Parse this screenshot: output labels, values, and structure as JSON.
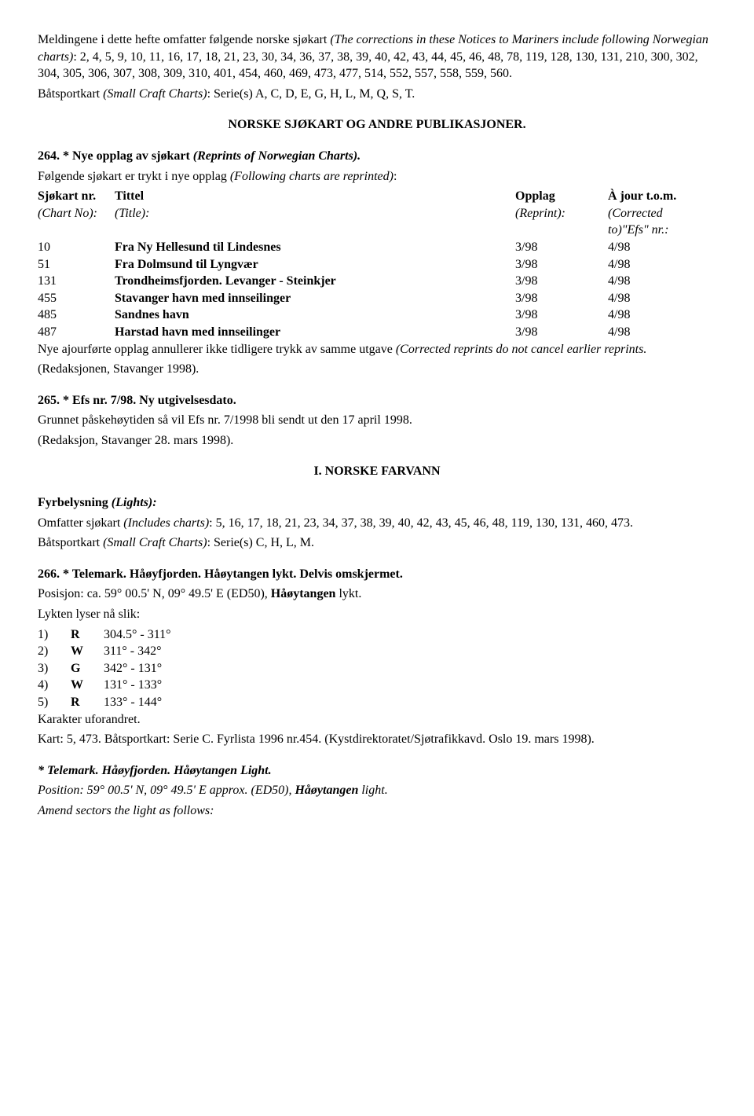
{
  "intro": {
    "lead_before_italic": "Meldingene i dette hefte omfatter følgende norske sjøkart ",
    "lead_italic": "(The corrections in these Notices to Mariners include following Norwegian charts)",
    "lead_after": ": 2, 4, 5, 9, 10, 11, 16, 17, 18, 21, 23, 30, 34, 36, 37, 38, 39, 40, 42, 43, 44, 45, 46, 48, 78, 119, 128, 130, 131, 210, 300, 302, 304, 305, 306, 307, 308, 309, 310, 401, 454, 460, 469, 473, 477, 514, 552, 557, 558, 559, 560.",
    "small_before_italic": "Båtsportkart ",
    "small_italic": "(Small Craft Charts)",
    "small_after": ": Serie(s) A, C, D, E, G, H, L, M, Q, S, T."
  },
  "heading1": "NORSKE SJØKART OG ANDRE PUBLIKASJONER.",
  "s264": {
    "title_bold": "264. * Nye opplag av sjøkart ",
    "title_italic": "(Reprints of Norwegian Charts).",
    "sub_before_italic": "Følgende sjøkart er trykt i nye opplag ",
    "sub_italic": "(Following charts are reprinted)",
    "sub_after": ":",
    "headers": {
      "no_bold": "Sjøkart nr.",
      "no_italic": "(Chart No):",
      "title_bold": "Tittel",
      "title_italic": "(Title):",
      "opplag_bold": "Opplag",
      "opplag_italic": "(Reprint):",
      "ajour_bold": "À jour t.o.m.",
      "ajour_italic1": "(Corrected",
      "ajour_italic2": "to)\"Efs\" nr.:"
    },
    "rows": [
      {
        "no": "10",
        "title": "Fra Ny Hellesund til Lindesnes",
        "opplag": "3/98",
        "ajour": "4/98"
      },
      {
        "no": "51",
        "title": "Fra Dolmsund til Lyngvær",
        "opplag": "3/98",
        "ajour": "4/98"
      },
      {
        "no": "131",
        "title": "Trondheimsfjorden. Levanger - Steinkjer",
        "opplag": "3/98",
        "ajour": "4/98"
      },
      {
        "no": "455",
        "title": "Stavanger havn med innseilinger",
        "opplag": "3/98",
        "ajour": "4/98"
      },
      {
        "no": "485",
        "title": "Sandnes havn",
        "opplag": "3/98",
        "ajour": "4/98"
      },
      {
        "no": "487",
        "title": "Harstad havn med innseilinger",
        "opplag": "3/98",
        "ajour": "4/98"
      }
    ],
    "tail_before_italic": "Nye ajourførte opplag annullerer ikke tidligere trykk av samme utgave ",
    "tail_italic": "(Corrected reprints do not cancel earlier reprints.",
    "source": "(Redaksjonen, Stavanger 1998)."
  },
  "s265": {
    "title": "265. * Efs nr. 7/98. Ny utgivelsesdato.",
    "body": "Grunnet påskehøytiden så vil Efs nr. 7/1998 bli sendt ut den 17 april 1998.",
    "source": "(Redaksjon, Stavanger 28. mars 1998)."
  },
  "heading2": "I. NORSKE FARVANN",
  "fyr": {
    "title_bold": "Fyrbelysning ",
    "title_italic": "(Lights):",
    "inc_before_italic": "Omfatter sjøkart ",
    "inc_italic": "(Includes charts)",
    "inc_after": ": 5, 16, 17, 18, 21, 23, 34, 37, 38, 39, 40, 42, 43, 45, 46, 48, 119, 130, 131, 460, 473.",
    "small_before_italic": "Båtsportkart ",
    "small_italic": "(Small Craft Charts)",
    "small_after": ": Serie(s) C, H, L, M."
  },
  "s266": {
    "title": "266. * Telemark. Håøyfjorden. Håøytangen lykt. Delvis omskjermet.",
    "pos_label": "Posisjon: ca. 59° 00.5' N, 09° 49.5' E (ED50), ",
    "pos_bold": "Håøytangen",
    "pos_after": " lykt.",
    "pre": "Lykten lyser nå slik:",
    "sectors": [
      {
        "n": "1)",
        "c": "R",
        "r": "304.5° - 311°"
      },
      {
        "n": "2)",
        "c": "W",
        "r": "311° - 342°"
      },
      {
        "n": "3)",
        "c": "G",
        "r": "342° - 131°"
      },
      {
        "n": "4)",
        "c": "W",
        "r": "131° - 133°"
      },
      {
        "n": "5)",
        "c": "R",
        "r": "133° - 144°"
      }
    ],
    "karakter": "Karakter uforandret.",
    "kart": "Kart: 5, 473. Båtsportkart: Serie C. Fyrlista 1996 nr.454. (Kystdirektoratet/Sjøtrafikkavd. Oslo 19. mars 1998)."
  },
  "s266b": {
    "title": "* Telemark. Håøyfjorden. Håøytangen Light.",
    "pos_before": "Position: 59° 00.5' N, 09° 49.5' E approx. (ED50), ",
    "pos_bold": "Håøytangen",
    "pos_after": " light.",
    "tail": "Amend sectors the light as follows:"
  }
}
